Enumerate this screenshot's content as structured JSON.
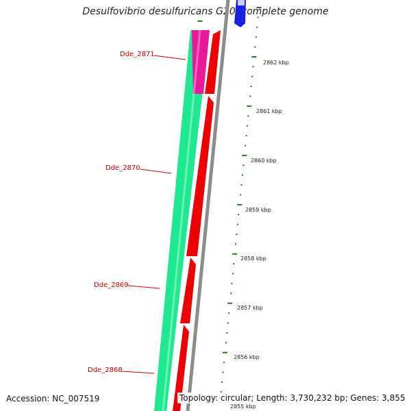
{
  "title": "Desulfovibrio desulfuricans G20, complete genome",
  "accession": "Accession: NC_007519",
  "topology": "Topology: circular; Length: 3,730,232 bp; Genes: 3,855",
  "colors": {
    "forward_gene": "#1ee890",
    "highlight_gene": "#e8199a",
    "reverse_cds": "#ee0000",
    "backbone": "#8c8c8c",
    "other_strand": "#1a22dd",
    "tick": "#1f7a1f",
    "label": "#cc0000"
  },
  "genes": [
    {
      "id": "Dde_2871"
    },
    {
      "id": "Dde_2870"
    },
    {
      "id": "Dde_2869"
    },
    {
      "id": "Dde_2868"
    }
  ],
  "ticks": [
    {
      "label": "2862 kbp"
    },
    {
      "label": "2861 kbp"
    },
    {
      "label": "2860 kbp"
    },
    {
      "label": "2859 kbp"
    },
    {
      "label": "2858 kbp"
    },
    {
      "label": "2857 kbp"
    },
    {
      "label": "2856 kbp"
    },
    {
      "label": "2855 kbp"
    }
  ]
}
